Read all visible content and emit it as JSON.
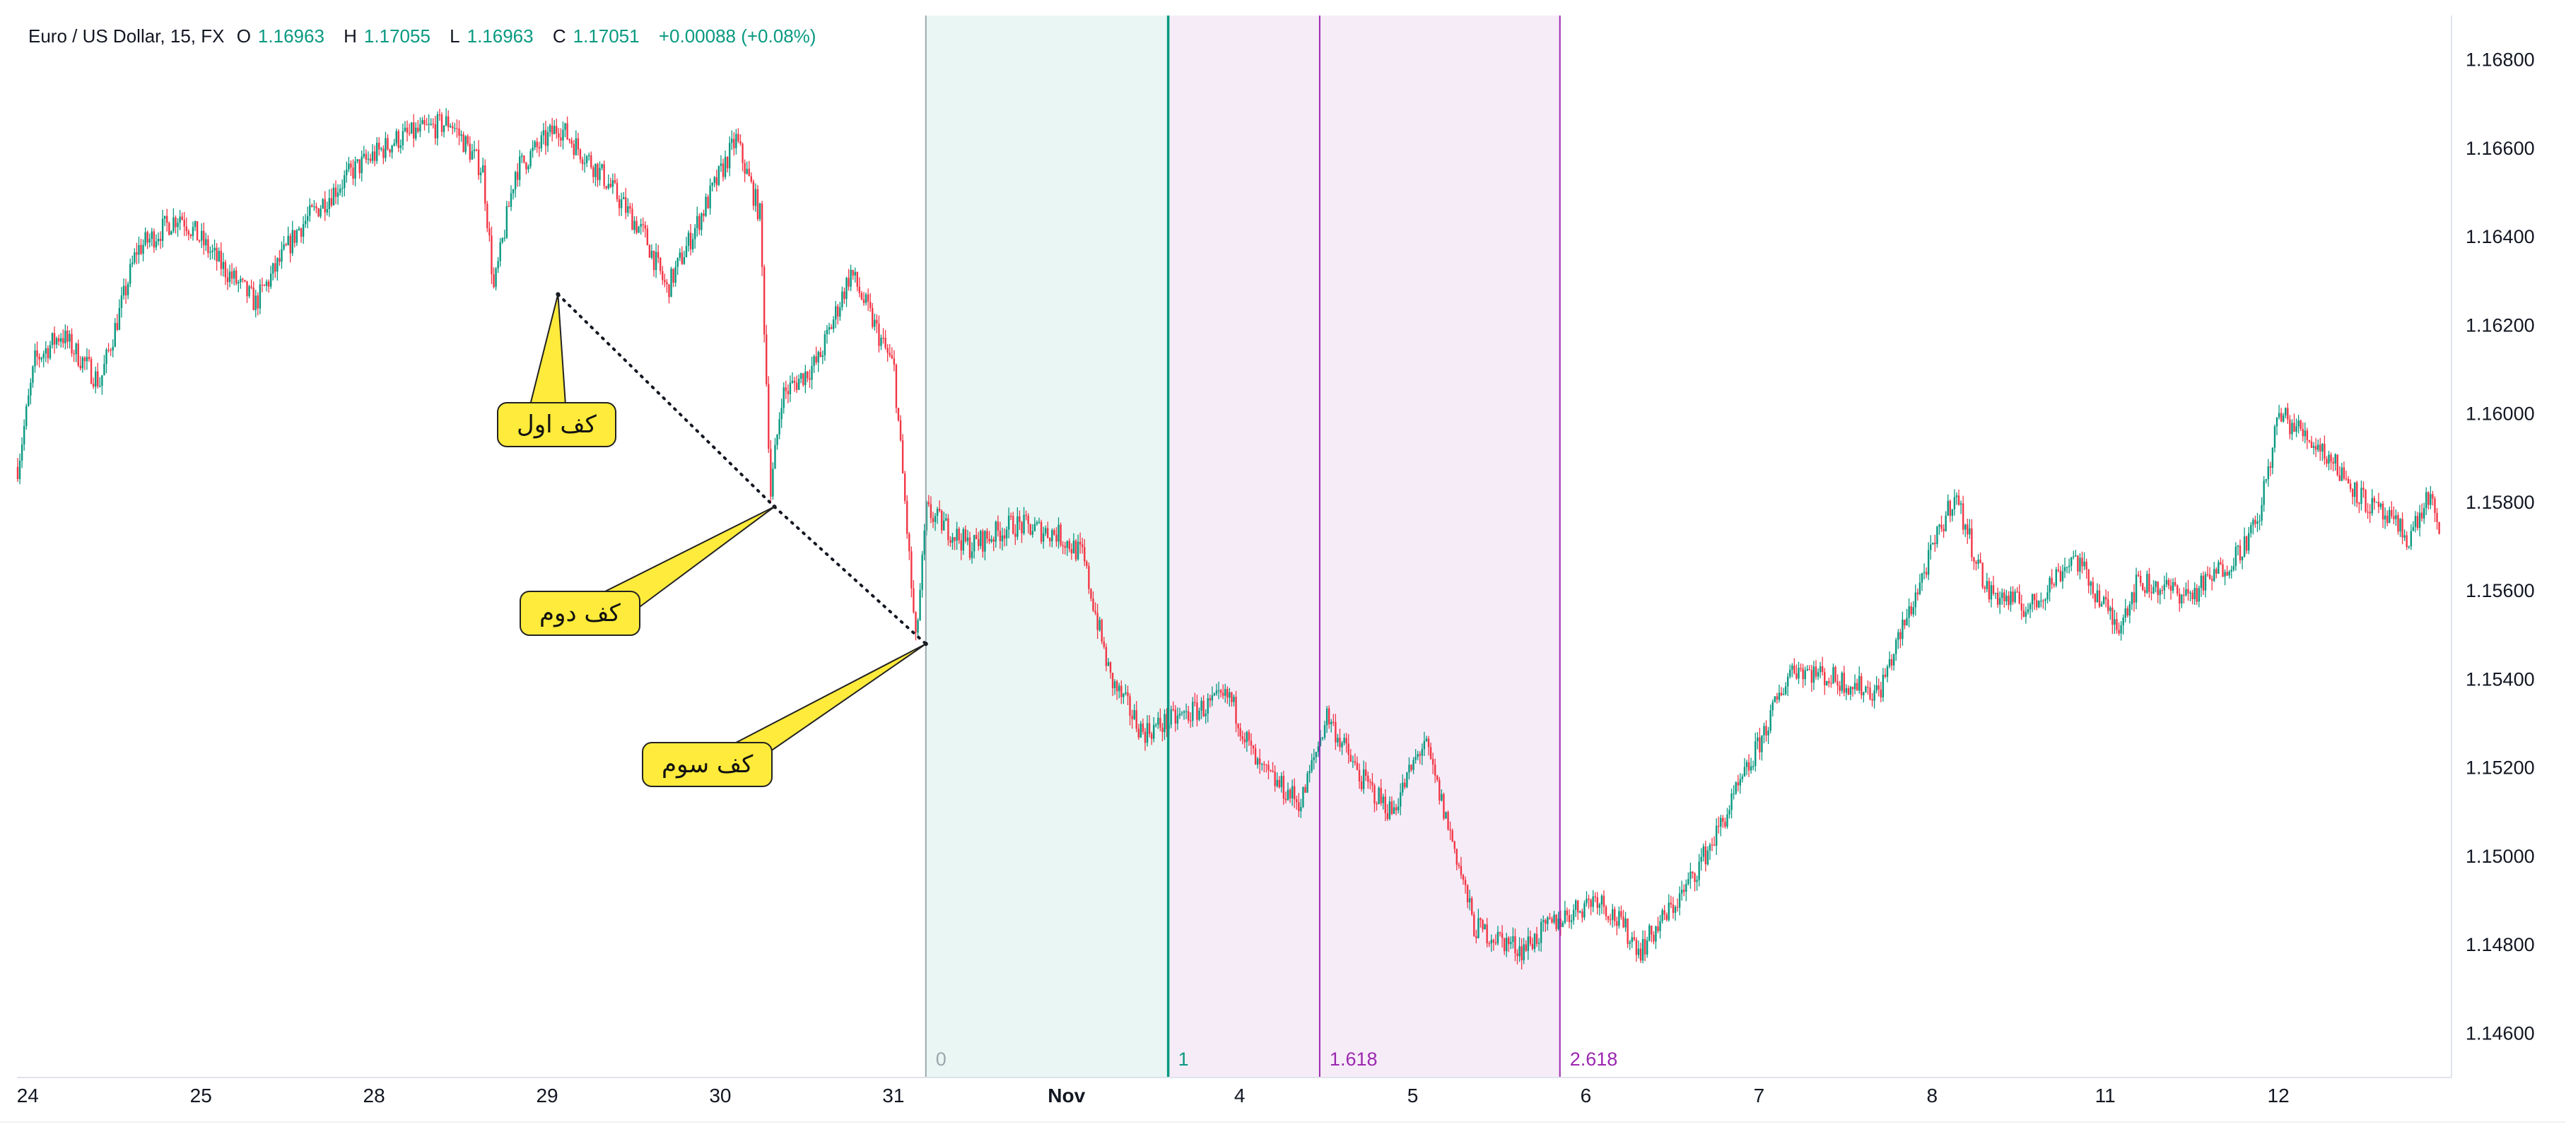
{
  "header": {
    "symbol": "Euro / US Dollar, 15, FX",
    "o_label": "O",
    "o": "1.16963",
    "h_label": "H",
    "h": "1.17055",
    "l_label": "L",
    "l": "1.16963",
    "c_label": "C",
    "c": "1.17051",
    "change": "+0.00088 (+0.08%)"
  },
  "annotations": {
    "first_bottom": "کف اول",
    "second_bottom": "کف دوم",
    "third_bottom": "کف سوم"
  },
  "colors": {
    "up": "#089981",
    "down": "#f23645",
    "fib_zone_green": "#e9f6f3",
    "fib_zone_purple": "#f6ecf8",
    "fib_line_green": "#089981",
    "fib_line_purple": "#9c27b0",
    "callout_fill": "#ffeb3b"
  },
  "chart_data": {
    "type": "candlestick",
    "title": "Euro / US Dollar, 15, FX",
    "y_ticks": [
      "1.16800",
      "1.16600",
      "1.16400",
      "1.16200",
      "1.16000",
      "1.15800",
      "1.15600",
      "1.15400",
      "1.15200",
      "1.15000",
      "1.14800",
      "1.14600"
    ],
    "ylim": [
      1.145,
      1.169
    ],
    "x_ticks": [
      "24",
      "25",
      "28",
      "29",
      "30",
      "31",
      "Nov",
      "4",
      "5",
      "6",
      "7",
      "8",
      "11",
      "12"
    ],
    "x_bold_ticks": [
      "Nov"
    ],
    "price_path": [
      [
        0.0,
        1.1588
      ],
      [
        0.8,
        1.1612
      ],
      [
        2.0,
        1.1618
      ],
      [
        3.0,
        1.1612
      ],
      [
        3.8,
        1.1607
      ],
      [
        5.5,
        1.1637
      ],
      [
        7.5,
        1.1645
      ],
      [
        9.5,
        1.1633
      ],
      [
        11.0,
        1.1625
      ],
      [
        13.0,
        1.1642
      ],
      [
        15.5,
        1.1655
      ],
      [
        17.5,
        1.1662
      ],
      [
        20.0,
        1.1666
      ],
      [
        21.5,
        1.1655
      ],
      [
        22.0,
        1.1628
      ],
      [
        23.0,
        1.1655
      ],
      [
        25.0,
        1.1665
      ],
      [
        27.0,
        1.1654
      ],
      [
        29.0,
        1.164
      ],
      [
        30.0,
        1.1628
      ],
      [
        31.5,
        1.1644
      ],
      [
        33.2,
        1.1662
      ],
      [
        34.3,
        1.1645
      ],
      [
        34.8,
        1.1582
      ],
      [
        35.3,
        1.1604
      ],
      [
        37.0,
        1.1612
      ],
      [
        38.5,
        1.1632
      ],
      [
        40.5,
        1.161
      ],
      [
        41.0,
        1.158
      ],
      [
        41.5,
        1.1548
      ],
      [
        42.0,
        1.1578
      ],
      [
        44.0,
        1.157
      ],
      [
        46.0,
        1.1575
      ],
      [
        48.0,
        1.1573
      ],
      [
        49.2,
        1.1568
      ],
      [
        50.5,
        1.154
      ],
      [
        52.0,
        1.1528
      ],
      [
        54.0,
        1.1532
      ],
      [
        56.0,
        1.1536
      ],
      [
        57.3,
        1.152
      ],
      [
        59.3,
        1.1512
      ],
      [
        60.5,
        1.1532
      ],
      [
        62.0,
        1.1518
      ],
      [
        63.5,
        1.151
      ],
      [
        65.0,
        1.1526
      ],
      [
        66.5,
        1.15
      ],
      [
        67.3,
        1.1484
      ],
      [
        69.5,
        1.1479
      ],
      [
        71.0,
        1.1485
      ],
      [
        73.0,
        1.1491
      ],
      [
        75.0,
        1.1479
      ],
      [
        77.0,
        1.1492
      ],
      [
        78.5,
        1.1505
      ],
      [
        80.0,
        1.152
      ],
      [
        82.0,
        1.1543
      ],
      [
        84.0,
        1.154
      ],
      [
        86.0,
        1.1537
      ],
      [
        88.0,
        1.1563
      ],
      [
        89.5,
        1.1582
      ],
      [
        91.0,
        1.156
      ],
      [
        93.0,
        1.1556
      ],
      [
        95.0,
        1.1568
      ],
      [
        97.0,
        1.1552
      ],
      [
        98.0,
        1.1562
      ],
      [
        100.5,
        1.1559
      ],
      [
        102.5,
        1.1568
      ],
      [
        103.5,
        1.1575
      ],
      [
        104.5,
        1.16
      ],
      [
        106.5,
        1.1592
      ],
      [
        108.5,
        1.158
      ],
      [
        110.5,
        1.1572
      ],
      [
        111.5,
        1.1582
      ],
      [
        112.0,
        1.1568
      ]
    ],
    "trend_line_points": [
      [
        25.0,
        1.1627
      ],
      [
        35.0,
        1.1579
      ],
      [
        42.0,
        1.1548
      ]
    ],
    "fib_time_zones": [
      {
        "label": "0",
        "at": 42.0,
        "color": "#9aa8ad"
      },
      {
        "label": "1",
        "at": 53.2,
        "color": "#089981"
      },
      {
        "label": "1.618",
        "at": 60.2,
        "color": "#9c27b0"
      },
      {
        "label": "2.618",
        "at": 71.3,
        "color": "#9c27b0"
      }
    ]
  }
}
